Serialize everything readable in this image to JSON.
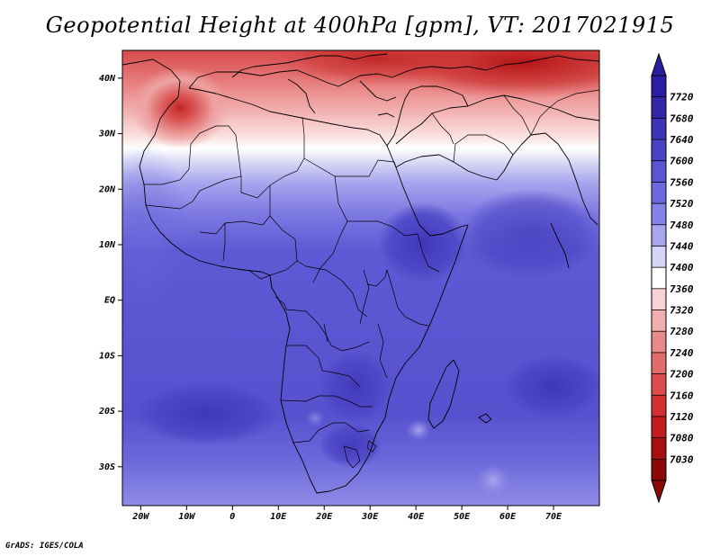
{
  "title": "Geopotential Height at 400hPa [gpm], VT: 2017021915",
  "credit": "GrADS: IGES/COLA",
  "map": {
    "region": "Africa, southern Europe, Middle East, western Indian Ocean",
    "lon_range": [
      -24,
      80
    ],
    "lat_range": [
      -37,
      45
    ],
    "x_ticks": [
      "20W",
      "10W",
      "0",
      "10E",
      "20E",
      "30E",
      "40E",
      "50E",
      "60E",
      "70E"
    ],
    "y_ticks": [
      "40N",
      "30N",
      "20N",
      "10N",
      "EQ",
      "10S",
      "20S",
      "30S"
    ]
  },
  "colorbar": {
    "labels": [
      "7720",
      "7680",
      "7640",
      "7600",
      "7560",
      "7520",
      "7480",
      "7440",
      "7400",
      "7360",
      "7320",
      "7280",
      "7240",
      "7200",
      "7160",
      "7120",
      "7080",
      "7030"
    ],
    "colors": [
      "#2a1fa0",
      "#3328a8",
      "#3d34b5",
      "#4a43c4",
      "#5a55d3",
      "#6c69de",
      "#8582e8",
      "#a8a6f0",
      "#d4d4f7",
      "#ffffff",
      "#f7d3d3",
      "#f0aeae",
      "#e98a8a",
      "#e26b6b",
      "#db4d4d",
      "#d13131",
      "#c21c1c",
      "#a81010",
      "#8a0808"
    ]
  }
}
